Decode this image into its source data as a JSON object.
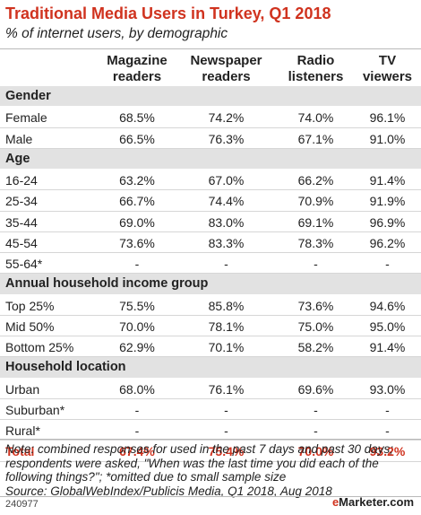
{
  "header": {
    "title": "Traditional Media Users in Turkey, Q1 2018",
    "subtitle": "% of internet users, by demographic"
  },
  "columns": [
    {
      "line1": "Magazine",
      "line2": "readers"
    },
    {
      "line1": "Newspaper",
      "line2": "readers"
    },
    {
      "line1": "Radio",
      "line2": "listeners"
    },
    {
      "line1": "TV",
      "line2": "viewers"
    }
  ],
  "chart_data": {
    "type": "table",
    "title": "Traditional Media Users in Turkey, Q1 2018",
    "subtitle": "% of internet users, by demographic",
    "columns": [
      "Magazine readers",
      "Newspaper readers",
      "Radio listeners",
      "TV viewers"
    ],
    "rows": [
      {
        "kind": "section",
        "label": "Gender"
      },
      {
        "kind": "data",
        "label": "Female",
        "values": [
          "68.5%",
          "74.2%",
          "74.0%",
          "96.1%"
        ]
      },
      {
        "kind": "data",
        "label": "Male",
        "values": [
          "66.5%",
          "76.3%",
          "67.1%",
          "91.0%"
        ]
      },
      {
        "kind": "section",
        "label": "Age"
      },
      {
        "kind": "data",
        "label": "16-24",
        "values": [
          "63.2%",
          "67.0%",
          "66.2%",
          "91.4%"
        ]
      },
      {
        "kind": "data",
        "label": "25-34",
        "values": [
          "66.7%",
          "74.4%",
          "70.9%",
          "91.9%"
        ]
      },
      {
        "kind": "data",
        "label": "35-44",
        "values": [
          "69.0%",
          "83.0%",
          "69.1%",
          "96.9%"
        ]
      },
      {
        "kind": "data",
        "label": "45-54",
        "values": [
          "73.6%",
          "83.3%",
          "78.3%",
          "96.2%"
        ]
      },
      {
        "kind": "data",
        "label": "55-64*",
        "values": [
          "-",
          "-",
          "-",
          "-"
        ]
      },
      {
        "kind": "section",
        "label": "Annual household income group"
      },
      {
        "kind": "data",
        "label": "Top 25%",
        "values": [
          "75.5%",
          "85.8%",
          "73.6%",
          "94.6%"
        ]
      },
      {
        "kind": "data",
        "label": "Mid 50%",
        "values": [
          "70.0%",
          "78.1%",
          "75.0%",
          "95.0%"
        ]
      },
      {
        "kind": "data",
        "label": "Bottom 25%",
        "values": [
          "62.9%",
          "70.1%",
          "58.2%",
          "91.4%"
        ]
      },
      {
        "kind": "section",
        "label": "Household location"
      },
      {
        "kind": "data",
        "label": "Urban",
        "values": [
          "68.0%",
          "76.1%",
          "69.6%",
          "93.0%"
        ]
      },
      {
        "kind": "data",
        "label": "Suburban*",
        "values": [
          "-",
          "-",
          "-",
          "-"
        ]
      },
      {
        "kind": "data",
        "label": "Rural*",
        "values": [
          "-",
          "-",
          "-",
          "-"
        ]
      },
      {
        "kind": "total",
        "label": "Total",
        "values": [
          "67.4%",
          "75.4%",
          "70.0%",
          "93.2%"
        ]
      }
    ]
  },
  "notes": {
    "line1": "Note: combined responses for used in the past 7 days and past 30 days;",
    "line2": "respondents were asked, \"When was the last time you did each of the",
    "line3": "following things?\"; *omitted due to small sample size",
    "source": "Source: GlobalWebIndex/Publicis Media, Q1 2018, Aug 2018"
  },
  "footer": {
    "chart_id": "240977",
    "brand_e": "e",
    "brand_rest": "Marketer",
    "brand_suffix": ".com"
  },
  "colors": {
    "accent": "#d0331f",
    "section_bg": "#e2e2e2",
    "rule": "#b9b9b9"
  }
}
